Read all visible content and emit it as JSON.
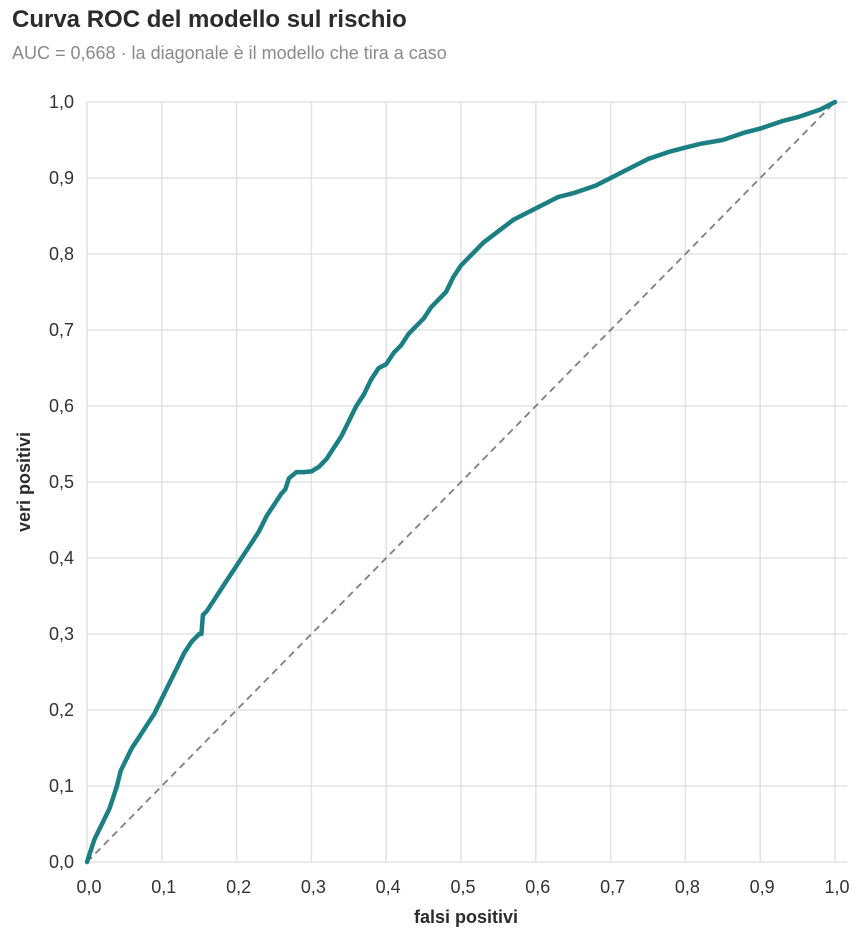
{
  "chart_data": {
    "type": "line",
    "title": "Curva ROC del modello sul rischio",
    "subtitle": "AUC = 0,668 · la diagonale è il modello che tira a caso",
    "xlabel": "falsi positivi",
    "ylabel": "veri positivi",
    "xlim": [
      0,
      1
    ],
    "ylim": [
      0,
      1
    ],
    "x_ticks": [
      "0,0",
      "0,1",
      "0,2",
      "0,3",
      "0,4",
      "0,5",
      "0,6",
      "0,7",
      "0,8",
      "0,9",
      "1,0"
    ],
    "y_ticks": [
      "0,0",
      "0,1",
      "0,2",
      "0,3",
      "0,4",
      "0,5",
      "0,6",
      "0,7",
      "0,8",
      "0,9",
      "1,0"
    ],
    "grid": true,
    "colors": {
      "curve": "#1b7f83",
      "diagonal": "#7f7f7f",
      "grid": "#e3e3e3"
    },
    "series": [
      {
        "style": "solid",
        "x": [
          0.0,
          0.005,
          0.01,
          0.015,
          0.02,
          0.025,
          0.03,
          0.035,
          0.04,
          0.045,
          0.05,
          0.055,
          0.06,
          0.07,
          0.08,
          0.09,
          0.1,
          0.11,
          0.12,
          0.13,
          0.14,
          0.15,
          0.153,
          0.155,
          0.16,
          0.17,
          0.18,
          0.19,
          0.2,
          0.21,
          0.22,
          0.23,
          0.24,
          0.25,
          0.26,
          0.265,
          0.27,
          0.28,
          0.29,
          0.3,
          0.31,
          0.32,
          0.33,
          0.34,
          0.35,
          0.36,
          0.37,
          0.38,
          0.39,
          0.4,
          0.41,
          0.42,
          0.43,
          0.44,
          0.45,
          0.46,
          0.47,
          0.48,
          0.49,
          0.5,
          0.51,
          0.52,
          0.53,
          0.55,
          0.57,
          0.6,
          0.63,
          0.65,
          0.68,
          0.7,
          0.72,
          0.75,
          0.78,
          0.8,
          0.82,
          0.85,
          0.88,
          0.9,
          0.93,
          0.95,
          0.98,
          1.0
        ],
        "y": [
          0.0,
          0.015,
          0.03,
          0.04,
          0.05,
          0.06,
          0.07,
          0.085,
          0.1,
          0.12,
          0.13,
          0.14,
          0.15,
          0.165,
          0.18,
          0.195,
          0.215,
          0.235,
          0.255,
          0.275,
          0.29,
          0.3,
          0.3,
          0.325,
          0.33,
          0.345,
          0.36,
          0.375,
          0.39,
          0.405,
          0.42,
          0.435,
          0.455,
          0.47,
          0.485,
          0.49,
          0.505,
          0.513,
          0.513,
          0.514,
          0.52,
          0.53,
          0.545,
          0.56,
          0.58,
          0.6,
          0.615,
          0.635,
          0.65,
          0.655,
          0.67,
          0.68,
          0.695,
          0.705,
          0.715,
          0.73,
          0.74,
          0.75,
          0.77,
          0.785,
          0.795,
          0.805,
          0.815,
          0.83,
          0.845,
          0.86,
          0.875,
          0.88,
          0.89,
          0.9,
          0.91,
          0.925,
          0.935,
          0.94,
          0.945,
          0.95,
          0.96,
          0.965,
          0.975,
          0.98,
          0.99,
          1.0
        ]
      },
      {
        "style": "dashed",
        "x": [
          0,
          1
        ],
        "y": [
          0,
          1
        ]
      }
    ]
  }
}
